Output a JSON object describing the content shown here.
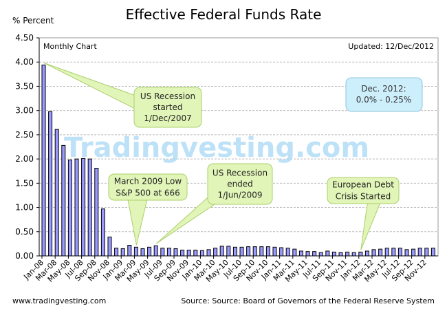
{
  "chart_data": {
    "type": "bar",
    "title": "Effective Federal Funds Rate",
    "ylabel": "% Percent",
    "xlabel": "",
    "ylim": [
      0,
      4.5
    ],
    "yticks": [
      "0.00",
      "0.50",
      "1.00",
      "1.50",
      "2.00",
      "2.50",
      "3.00",
      "3.50",
      "4.00",
      "4.50"
    ],
    "grid": true,
    "subtitle_left": "Monthly Chart",
    "subtitle_right": "Updated: 12/Dec/2012",
    "watermark": "Tradingvesting.com",
    "bar_color": "#9999ff",
    "categories": [
      "Jan-08",
      "Feb-08",
      "Mar-08",
      "Apr-08",
      "May-08",
      "Jun-08",
      "Jul-08",
      "Aug-08",
      "Sep-08",
      "Oct-08",
      "Nov-08",
      "Dec-08",
      "Jan-09",
      "Feb-09",
      "Mar-09",
      "Apr-09",
      "May-09",
      "Jun-09",
      "Jul-09",
      "Aug-09",
      "Sep-09",
      "Oct-09",
      "Nov-09",
      "Dec-09",
      "Jan-10",
      "Feb-10",
      "Mar-10",
      "Apr-10",
      "May-10",
      "Jun-10",
      "Jul-10",
      "Aug-10",
      "Sep-10",
      "Oct-10",
      "Nov-10",
      "Dec-10",
      "Jan-11",
      "Feb-11",
      "Mar-11",
      "Apr-11",
      "May-11",
      "Jun-11",
      "Jul-11",
      "Aug-11",
      "Sep-11",
      "Oct-11",
      "Nov-11",
      "Dec-11",
      "Jan-12",
      "Feb-12",
      "Mar-12",
      "Apr-12",
      "May-12",
      "Jun-12",
      "Jul-12",
      "Aug-12",
      "Sep-12",
      "Oct-12",
      "Nov-12",
      "Dec-12"
    ],
    "values": [
      3.94,
      2.98,
      2.61,
      2.28,
      1.98,
      2.0,
      2.01,
      2.0,
      1.81,
      0.97,
      0.39,
      0.16,
      0.15,
      0.22,
      0.18,
      0.15,
      0.18,
      0.21,
      0.16,
      0.16,
      0.15,
      0.12,
      0.12,
      0.12,
      0.11,
      0.13,
      0.16,
      0.2,
      0.2,
      0.18,
      0.18,
      0.19,
      0.19,
      0.19,
      0.19,
      0.18,
      0.17,
      0.16,
      0.14,
      0.1,
      0.09,
      0.09,
      0.07,
      0.1,
      0.08,
      0.07,
      0.08,
      0.07,
      0.08,
      0.1,
      0.13,
      0.14,
      0.16,
      0.16,
      0.16,
      0.13,
      0.14,
      0.16,
      0.16,
      0.16
    ],
    "xtick_labels": [
      "Jan-08",
      "Mar-08",
      "May-08",
      "Jul-08",
      "Sep-08",
      "Nov-08",
      "Jan-09",
      "Mar-09",
      "May-09",
      "Jul-09",
      "Sep-09",
      "Nov-09",
      "Jan-10",
      "Mar-10",
      "May-10",
      "Jul-10",
      "Sep-10",
      "Nov-10",
      "Jan-11",
      "Mar-11",
      "May-11",
      "Jul-11",
      "Sep-11",
      "Nov-11",
      "Jan-12",
      "Mar-12",
      "May-12",
      "Jul-12",
      "Sep-12",
      "Nov-12"
    ],
    "annotations": [
      {
        "lines": [
          "US Recession",
          "started",
          "1/Dec/2007"
        ],
        "target": "Jan-08"
      },
      {
        "lines": [
          "March 2009 Low",
          "S&P 500 at 666"
        ],
        "target": "Mar-09"
      },
      {
        "lines": [
          "US Recession",
          "ended",
          "1/Jun/2009"
        ],
        "target": "Jun-09"
      },
      {
        "lines": [
          "European Debt",
          "Crisis Started"
        ],
        "target": "Jan-12"
      }
    ],
    "info_box": [
      "Dec. 2012:",
      "0.0% - 0.25%"
    ]
  },
  "footer": {
    "left": "www.tradingvesting.com",
    "right": "Source: Source: Board of Governors of the Federal Reserve System"
  }
}
